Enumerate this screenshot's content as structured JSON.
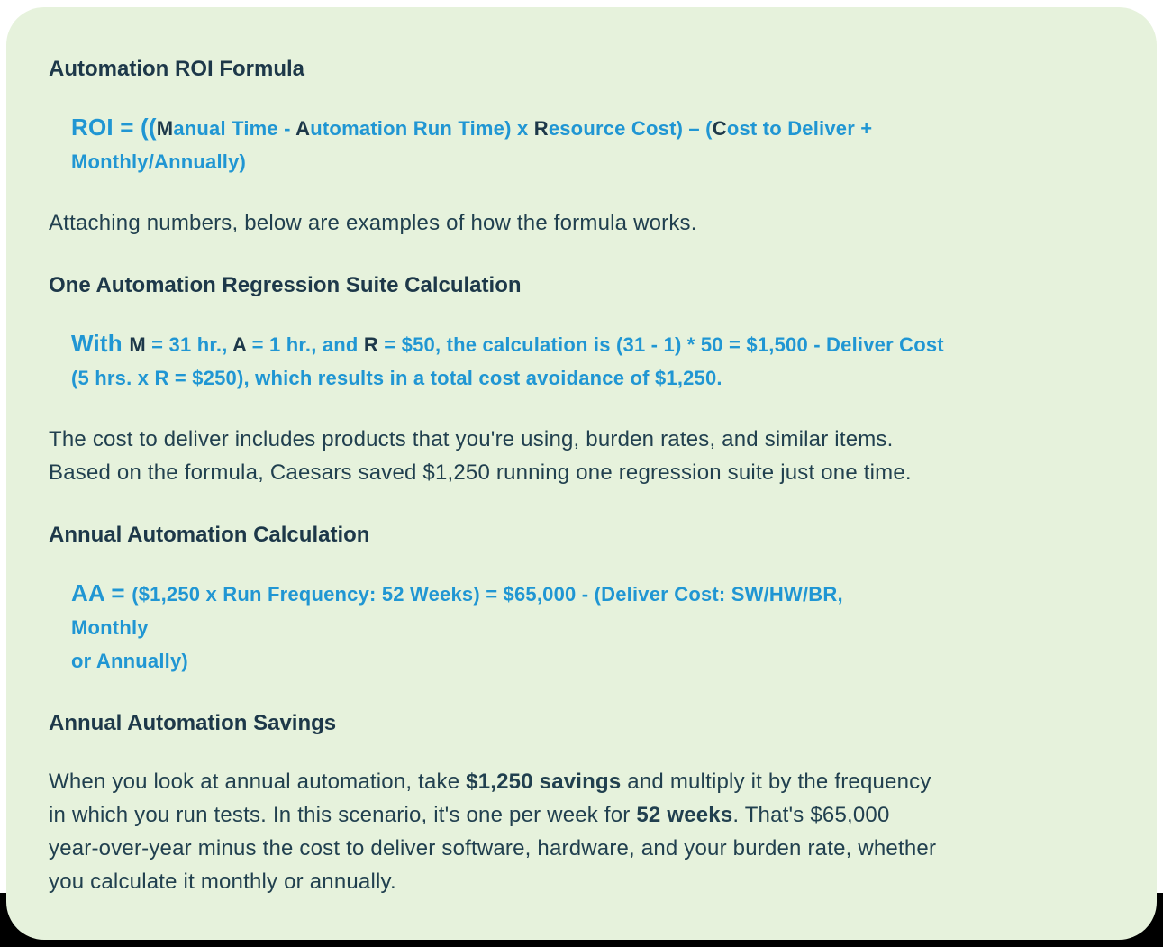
{
  "panel": {
    "background_color": "#e6f2dc",
    "heading_color": "#1d3849",
    "body_color": "#21404f",
    "accent_blue": "#2096d3"
  },
  "content": {
    "h1": "Automation ROI Formula",
    "formula1": {
      "lead": "ROI = ((",
      "m": "M",
      "seg_manual": "anual Time - ",
      "a": "A",
      "seg_automation": "utomation Run Time) x ",
      "r": "R",
      "seg_resource": "esource Cost) – (",
      "c": "C",
      "seg_cost": "ost to Deliver +",
      "line2": "Monthly/Annually)"
    },
    "p1": "Attaching numbers, below are examples of how the formula works.",
    "h2": "One Automation Regression Suite Calculation",
    "formula2": {
      "lead": "With ",
      "m": "M",
      "seg1": " = 31 hr., ",
      "a": "A",
      "seg2": " = 1 hr., and ",
      "r": "R",
      "seg3": " = $50, the calculation is (31 - 1) * 50 = $1,500 - Deliver Cost",
      "line2": "(5 hrs. x R = $250), which results in a total cost avoidance of $1,250."
    },
    "p2": {
      "line1": "The cost to deliver includes products that you're using, burden rates, and similar items.",
      "line2": "Based on the formula, Caesars saved $1,250 running one regression suite just one time."
    },
    "h3": "Annual Automation Calculation",
    "formula3": {
      "lead": "AA = ",
      "line1": "($1,250 x Run Frequency: 52 Weeks) = $65,000 - (Deliver Cost: SW/HW/BR,",
      "line2": "Monthly",
      "line3": "or Annually)"
    },
    "h4": "Annual Automation Savings",
    "p3": {
      "seg1": "When you look at annual automation, take ",
      "bold1": "$1,250 savings",
      "seg2": " and multiply it by the frequency",
      "line2_seg1": "in which you run tests. In this scenario, it's one per week for ",
      "line2_bold": "52 weeks",
      "line2_seg2": ". That's $65,000",
      "line3": "year-over-year minus the cost to deliver software, hardware, and your burden rate, whether",
      "line4": "you calculate it monthly or annually."
    }
  }
}
